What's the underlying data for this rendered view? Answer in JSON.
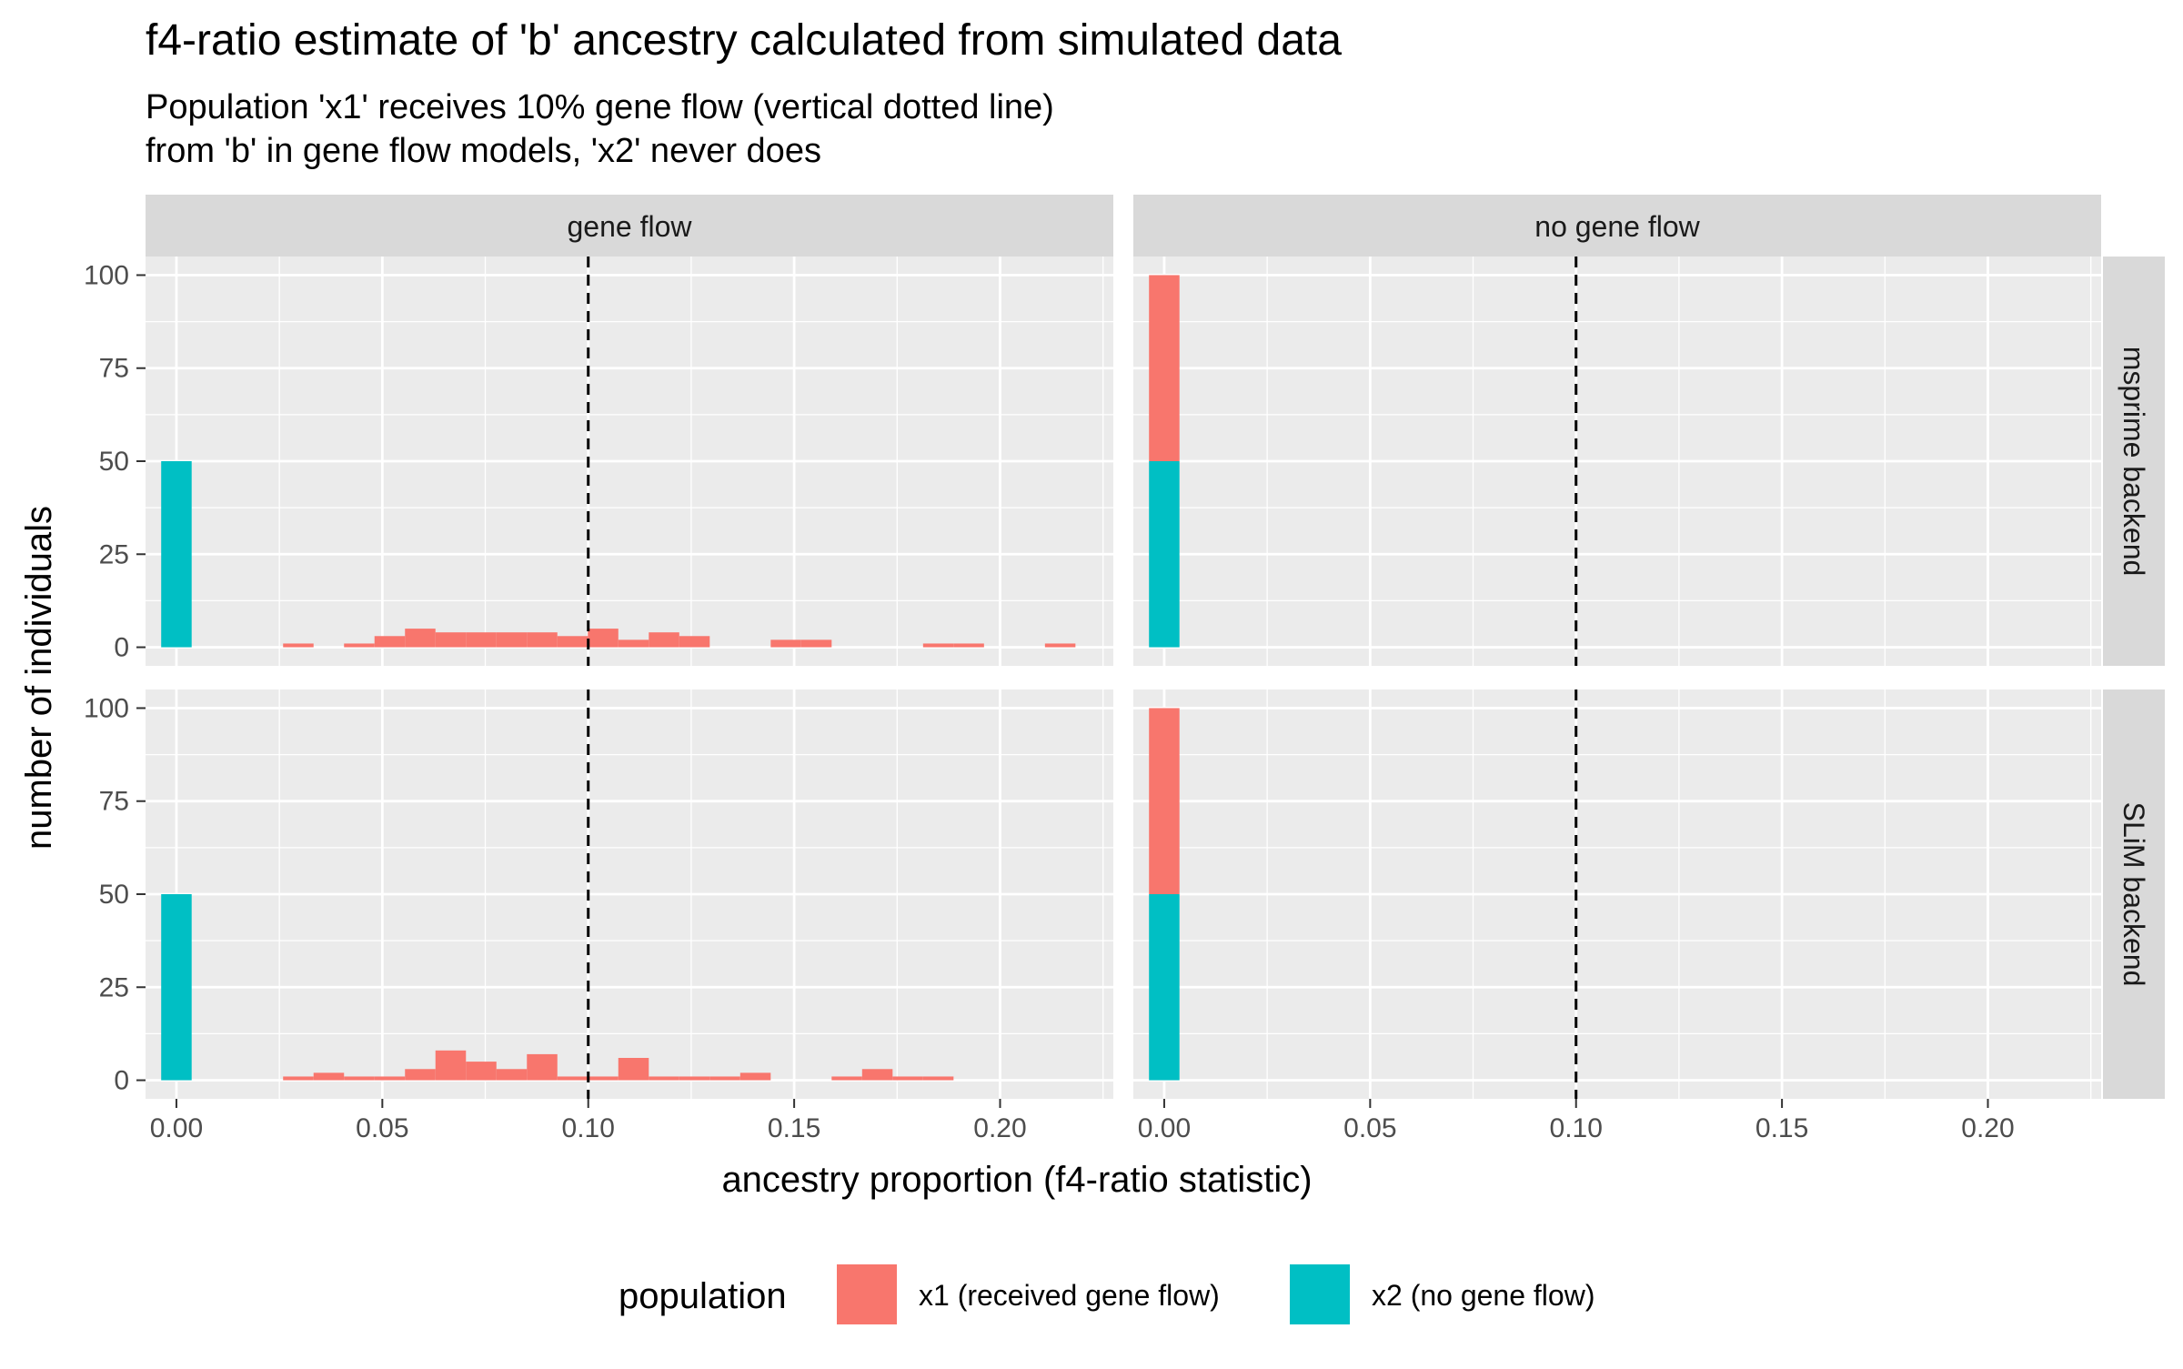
{
  "chart_data": {
    "type": "bar",
    "title": "f4-ratio estimate of 'b' ancestry calculated from simulated data",
    "subtitle_lines": [
      "Population 'x1' receives 10% gene flow (vertical dotted line)",
      "from 'b' in gene flow models, 'x2' never does"
    ],
    "xlabel": "ancestry proportion (f4-ratio statistic)",
    "ylabel": "number of individuals",
    "xlim": [
      -0.0075,
      0.2275
    ],
    "ylim": [
      -5,
      105
    ],
    "x_ticks": [
      0.0,
      0.05,
      0.1,
      0.15,
      0.2
    ],
    "x_tick_labels": [
      "0.00",
      "0.05",
      "0.10",
      "0.15",
      "0.20"
    ],
    "y_ticks": [
      0,
      25,
      50,
      75,
      100
    ],
    "y_tick_labels": [
      "0",
      "25",
      "50",
      "75",
      "100"
    ],
    "bin_width": 0.0074,
    "reference_line": {
      "x": 0.1,
      "style": "dashed"
    },
    "column_facets": [
      "gene flow",
      "no gene flow"
    ],
    "row_facets": [
      "msprime backend",
      "SLiM backend"
    ],
    "legend": {
      "title": "population",
      "position": "bottom",
      "entries": [
        {
          "key": "x1",
          "label": "x1 (received gene flow)",
          "color": "#F8766D"
        },
        {
          "key": "x2",
          "label": "x2 (no gene flow)",
          "color": "#00BFC4"
        }
      ]
    },
    "colors": {
      "x1": "#F8766D",
      "x2": "#00BFC4",
      "panel_bg": "#EBEBEB",
      "strip_bg": "#D9D9D9",
      "grid": "#FFFFFF"
    },
    "panels": [
      {
        "col": "gene flow",
        "row": "msprime backend",
        "stacks": [
          {
            "x": 0.0,
            "x1": 0,
            "x2": 50
          },
          {
            "x": 0.0296,
            "x1": 1,
            "x2": 0
          },
          {
            "x": 0.0444,
            "x1": 1,
            "x2": 0
          },
          {
            "x": 0.0518,
            "x1": 3,
            "x2": 0
          },
          {
            "x": 0.0592,
            "x1": 5,
            "x2": 0
          },
          {
            "x": 0.0666,
            "x1": 4,
            "x2": 0
          },
          {
            "x": 0.074,
            "x1": 4,
            "x2": 0
          },
          {
            "x": 0.0814,
            "x1": 4,
            "x2": 0
          },
          {
            "x": 0.0888,
            "x1": 4,
            "x2": 0
          },
          {
            "x": 0.0962,
            "x1": 3,
            "x2": 0
          },
          {
            "x": 0.1036,
            "x1": 5,
            "x2": 0
          },
          {
            "x": 0.111,
            "x1": 2,
            "x2": 0
          },
          {
            "x": 0.1184,
            "x1": 4,
            "x2": 0
          },
          {
            "x": 0.1258,
            "x1": 3,
            "x2": 0
          },
          {
            "x": 0.148,
            "x1": 2,
            "x2": 0
          },
          {
            "x": 0.1554,
            "x1": 2,
            "x2": 0
          },
          {
            "x": 0.185,
            "x1": 1,
            "x2": 0
          },
          {
            "x": 0.1924,
            "x1": 1,
            "x2": 0
          },
          {
            "x": 0.2146,
            "x1": 1,
            "x2": 0
          }
        ]
      },
      {
        "col": "no gene flow",
        "row": "msprime backend",
        "stacks": [
          {
            "x": 0.0,
            "x1": 50,
            "x2": 50
          }
        ]
      },
      {
        "col": "gene flow",
        "row": "SLiM backend",
        "stacks": [
          {
            "x": 0.0,
            "x1": 0,
            "x2": 50
          },
          {
            "x": 0.0296,
            "x1": 1,
            "x2": 0
          },
          {
            "x": 0.037,
            "x1": 2,
            "x2": 0
          },
          {
            "x": 0.0444,
            "x1": 1,
            "x2": 0
          },
          {
            "x": 0.0518,
            "x1": 1,
            "x2": 0
          },
          {
            "x": 0.0592,
            "x1": 3,
            "x2": 0
          },
          {
            "x": 0.0666,
            "x1": 8,
            "x2": 0
          },
          {
            "x": 0.074,
            "x1": 5,
            "x2": 0
          },
          {
            "x": 0.0814,
            "x1": 3,
            "x2": 0
          },
          {
            "x": 0.0888,
            "x1": 7,
            "x2": 0
          },
          {
            "x": 0.0962,
            "x1": 1,
            "x2": 0
          },
          {
            "x": 0.1036,
            "x1": 1,
            "x2": 0
          },
          {
            "x": 0.111,
            "x1": 6,
            "x2": 0
          },
          {
            "x": 0.1184,
            "x1": 1,
            "x2": 0
          },
          {
            "x": 0.1258,
            "x1": 1,
            "x2": 0
          },
          {
            "x": 0.1332,
            "x1": 1,
            "x2": 0
          },
          {
            "x": 0.1406,
            "x1": 2,
            "x2": 0
          },
          {
            "x": 0.1628,
            "x1": 1,
            "x2": 0
          },
          {
            "x": 0.1702,
            "x1": 3,
            "x2": 0
          },
          {
            "x": 0.1776,
            "x1": 1,
            "x2": 0
          },
          {
            "x": 0.185,
            "x1": 1,
            "x2": 0
          }
        ]
      },
      {
        "col": "no gene flow",
        "row": "SLiM backend",
        "stacks": [
          {
            "x": 0.0,
            "x1": 50,
            "x2": 50
          }
        ]
      }
    ]
  }
}
